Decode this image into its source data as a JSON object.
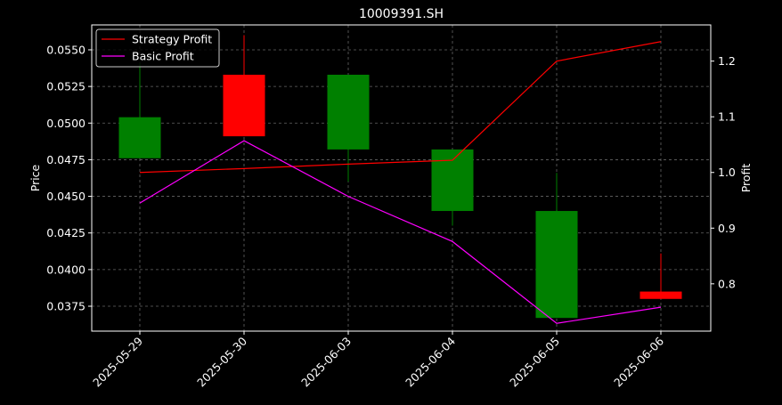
{
  "chart_data": {
    "type": "candlestick",
    "title": "10009391.SH",
    "xlabel": "",
    "ylabel_left": "Price",
    "ylabel_right": "Profit",
    "grid": true,
    "legend_position": "top-left",
    "y_left_range": [
      0.0358,
      0.0567
    ],
    "y_right_range": [
      0.715,
      1.265
    ],
    "y_left_ticks": [
      "0.0375",
      "0.0400",
      "0.0425",
      "0.0450",
      "0.0475",
      "0.0500",
      "0.0525",
      "0.0550"
    ],
    "y_right_ticks": [
      "0.8",
      "0.9",
      "1.0",
      "1.1",
      "1.2"
    ],
    "categories": [
      "2025-05-29",
      "2025-05-30",
      "2025-06-03",
      "2025-06-04",
      "2025-06-05",
      "2025-06-06"
    ],
    "candles": [
      {
        "open": 0.0476,
        "close": 0.0504,
        "high": 0.0541,
        "low": 0.0476
      },
      {
        "open": 0.0533,
        "close": 0.0491,
        "high": 0.056,
        "low": 0.0491
      },
      {
        "open": 0.0482,
        "close": 0.0533,
        "high": 0.0533,
        "low": 0.046
      },
      {
        "open": 0.044,
        "close": 0.0482,
        "high": 0.0482,
        "low": 0.043
      },
      {
        "open": 0.0367,
        "close": 0.044,
        "high": 0.0466,
        "low": 0.0367
      },
      {
        "open": 0.0385,
        "close": 0.038,
        "high": 0.0411,
        "low": 0.038
      }
    ],
    "series": [
      {
        "name": "Strategy Profit",
        "color": "#ff0000",
        "axis": "right",
        "values": [
          1.0,
          1.007,
          1.015,
          1.022,
          1.2,
          1.235
        ]
      },
      {
        "name": "Basic Profit",
        "color": "#ff00ff",
        "axis": "right",
        "values": [
          0.945,
          1.057,
          0.957,
          0.876,
          0.729,
          0.758
        ]
      }
    ],
    "colors": {
      "up": "#008000",
      "down": "#ff0000",
      "background": "#000000",
      "axis": "#ffffff",
      "grid": "#808080"
    }
  }
}
